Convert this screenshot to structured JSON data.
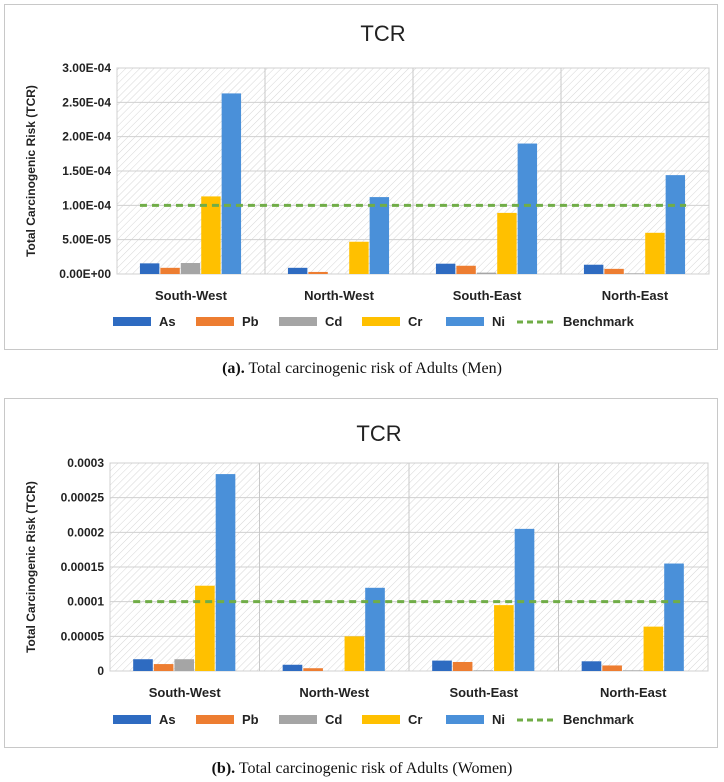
{
  "charts": [
    {
      "caption": {
        "label": "(a).",
        "text": " Total carcinogenic risk of Adults (Men)"
      }
    },
    {
      "caption": {
        "label": "(b).",
        "text": " Total carcinogenic risk of Adults (Women)"
      }
    }
  ],
  "colors": {
    "As": "#2e6bc1",
    "Pb": "#ed7d31",
    "Cd": "#a5a5a5",
    "Cr": "#ffc000",
    "Ni": "#4a90d9",
    "Benchmark": "#70ad47"
  },
  "chart_data": [
    {
      "type": "bar",
      "title": "TCR",
      "xlabel": "",
      "ylabel": "Total Carcinogenic Risk (TCR)",
      "categories": [
        "South-West",
        "North-West",
        "South-East",
        "North-East"
      ],
      "series": [
        {
          "name": "As",
          "values": [
            1.55e-05,
            9e-06,
            1.5e-05,
            1.35e-05
          ]
        },
        {
          "name": "Pb",
          "values": [
            9e-06,
            3e-06,
            1.2e-05,
            7.5e-06
          ]
        },
        {
          "name": "Cd",
          "values": [
            1.6e-05,
            0,
            2e-06,
            1e-06
          ]
        },
        {
          "name": "Cr",
          "values": [
            0.000113,
            4.7e-05,
            8.9e-05,
            6e-05
          ]
        },
        {
          "name": "Ni",
          "values": [
            0.000263,
            0.000112,
            0.00019,
            0.000144
          ]
        }
      ],
      "benchmark": {
        "name": "Benchmark",
        "value": 0.0001
      },
      "ylim": [
        0,
        0.0003
      ],
      "yticks": [
        0,
        5e-05,
        0.0001,
        0.00015,
        0.0002,
        0.00025,
        0.0003
      ],
      "ytick_labels": [
        "0.00E+00",
        "5.00E-05",
        "1.00E-04",
        "1.50E-04",
        "2.00E-04",
        "2.50E-04",
        "3.00E-04"
      ],
      "legend_position": "bottom"
    },
    {
      "type": "bar",
      "title": "TCR",
      "xlabel": "",
      "ylabel": "Total Carcinogenic Risk (TCR)",
      "categories": [
        "South-West",
        "North-West",
        "South-East",
        "North-East"
      ],
      "series": [
        {
          "name": "As",
          "values": [
            1.7e-05,
            9e-06,
            1.5e-05,
            1.4e-05
          ]
        },
        {
          "name": "Pb",
          "values": [
            1e-05,
            4e-06,
            1.3e-05,
            8e-06
          ]
        },
        {
          "name": "Cd",
          "values": [
            1.7e-05,
            0,
            1e-06,
            1e-06
          ]
        },
        {
          "name": "Cr",
          "values": [
            0.000123,
            5e-05,
            9.5e-05,
            6.4e-05
          ]
        },
        {
          "name": "Ni",
          "values": [
            0.000284,
            0.00012,
            0.000205,
            0.000155
          ]
        }
      ],
      "benchmark": {
        "name": "Benchmark",
        "value": 0.0001
      },
      "ylim": [
        0,
        0.0003
      ],
      "yticks": [
        0,
        5e-05,
        0.0001,
        0.00015,
        0.0002,
        0.00025,
        0.0003
      ],
      "ytick_labels": [
        "0",
        "0.00005",
        "0.0001",
        "0.00015",
        "0.0002",
        "0.00025",
        "0.0003"
      ],
      "legend_position": "bottom"
    }
  ]
}
